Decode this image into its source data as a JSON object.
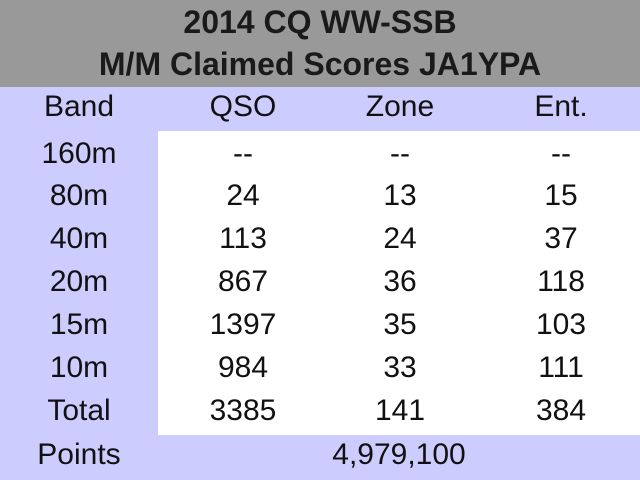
{
  "title": {
    "line1": "2014 CQ WW-SSB",
    "line2": "M/M Claimed Scores JA1YPA"
  },
  "table": {
    "headers": [
      "Band",
      "QSO",
      "Zone",
      "Ent."
    ],
    "rows": [
      {
        "band": "160m",
        "qso": "--",
        "zone": "--",
        "ent": "--"
      },
      {
        "band": "80m",
        "qso": "24",
        "zone": "13",
        "ent": "15"
      },
      {
        "band": "40m",
        "qso": "113",
        "zone": "24",
        "ent": "37"
      },
      {
        "band": "20m",
        "qso": "867",
        "zone": "36",
        "ent": "118"
      },
      {
        "band": "15m",
        "qso": "1397",
        "zone": "35",
        "ent": "103"
      },
      {
        "band": "10m",
        "qso": "984",
        "zone": "33",
        "ent": "111"
      },
      {
        "band": "Total",
        "qso": "3385",
        "zone": "141",
        "ent": "384"
      }
    ],
    "points_label": "Points",
    "points_value": "4,979,100"
  },
  "colors": {
    "header_bg": "#999999",
    "band_bg": "#ccccff",
    "panel_bg": "#ffffff"
  }
}
